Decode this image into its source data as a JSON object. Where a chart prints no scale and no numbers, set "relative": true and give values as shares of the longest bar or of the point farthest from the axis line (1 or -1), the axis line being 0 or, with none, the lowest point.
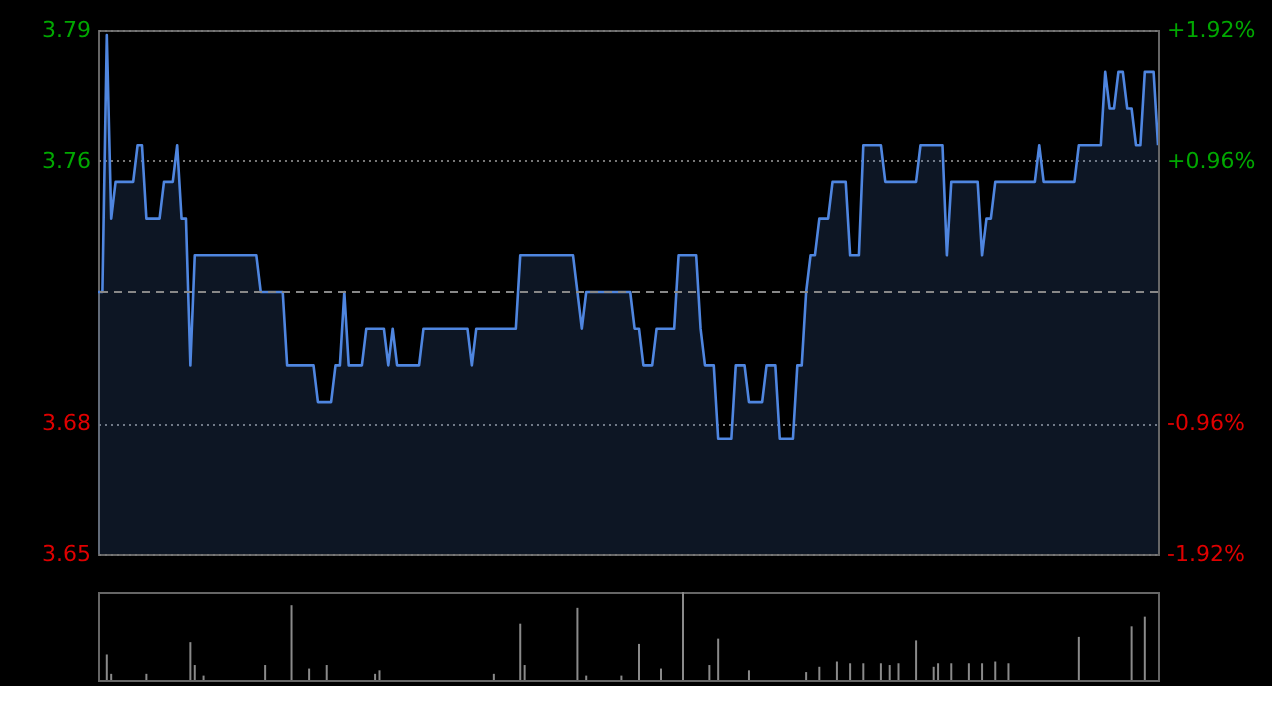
{
  "chart_data": [
    {
      "type": "line",
      "categories": [
        null,
        null,
        null,
        null,
        null,
        null,
        null,
        null,
        null,
        null,
        null,
        null,
        null,
        null,
        null,
        null,
        null,
        null,
        null,
        null,
        null,
        null,
        null,
        null,
        null,
        null,
        null,
        null,
        null,
        null,
        null,
        null,
        null,
        null,
        null,
        null,
        null,
        null,
        null,
        null,
        null,
        null,
        null,
        null,
        null,
        null,
        null,
        null,
        null,
        null,
        null,
        null,
        null,
        null,
        null,
        null,
        null,
        null,
        null,
        null,
        null,
        null,
        null,
        null,
        null,
        null,
        null,
        null,
        null,
        null,
        null,
        null,
        null,
        null,
        null,
        null,
        null,
        null,
        null,
        null,
        null,
        null,
        null,
        null,
        null,
        null,
        null,
        null,
        null,
        null,
        null,
        null,
        null,
        null,
        null,
        null,
        null,
        null,
        null,
        null,
        null,
        null,
        null,
        null,
        null,
        null,
        null,
        null,
        null,
        null,
        null,
        null,
        null,
        null,
        null,
        null,
        null,
        null,
        null,
        null,
        null,
        null,
        null,
        null,
        null,
        null,
        null,
        null,
        null,
        null,
        null,
        null,
        null,
        null,
        null,
        null,
        null,
        null,
        null,
        null,
        null,
        null,
        null,
        null,
        null,
        null,
        null,
        null,
        null,
        null,
        null,
        null,
        null,
        null,
        null,
        null,
        null,
        null,
        null,
        null,
        null,
        null,
        null,
        null,
        null,
        null,
        null,
        null,
        null,
        null,
        null,
        null,
        null,
        null,
        null,
        null,
        null,
        null,
        null,
        null,
        null,
        null,
        null,
        null,
        null,
        null,
        null,
        null,
        null,
        null,
        null,
        null,
        null,
        null,
        null,
        null,
        null,
        null,
        null,
        null,
        null,
        null,
        null,
        null,
        null,
        null,
        null,
        null,
        null,
        null,
        null,
        null,
        null,
        null,
        null,
        null,
        null,
        null,
        null,
        null,
        null,
        null,
        null,
        null,
        null,
        null,
        null,
        null,
        null,
        null,
        null,
        null,
        null,
        null,
        null,
        null,
        null,
        null,
        null,
        null,
        null,
        null
      ],
      "ylim": [
        3.6486,
        3.7914
      ],
      "yticks": [
        {
          "value": 3.6486,
          "label": "3.65"
        },
        {
          "value": 3.6843,
          "label": "3.68"
        },
        {
          "value": 3.7557,
          "label": "3.76"
        },
        {
          "value": 3.7914,
          "label": "3.79"
        }
      ],
      "y2lim": [
        -1.92,
        1.92
      ],
      "y2ticks": [
        {
          "value": -1.92,
          "label": "-1.92%"
        },
        {
          "value": -0.96,
          "label": "-0.96%"
        },
        {
          "value": 0.96,
          "label": "+0.96%"
        },
        {
          "value": 1.92,
          "label": "+1.92%"
        }
      ],
      "ref_lines": [
        {
          "axis": "y",
          "value": 3.72,
          "label": null,
          "color": "#888888",
          "line_style": "dashed"
        }
      ],
      "grid": "y",
      "marker": "none",
      "line_style": "solid",
      "tick_labels": "y",
      "series": [
        {
          "color": "#4f86e0",
          "values": [
            3.72,
            3.72,
            3.79,
            3.74,
            3.75,
            3.75,
            3.75,
            3.75,
            3.75,
            3.76,
            3.76,
            3.74,
            3.74,
            3.74,
            3.74,
            3.75,
            3.75,
            3.75,
            3.76,
            3.74,
            3.74,
            3.7,
            3.73,
            3.73,
            3.73,
            3.73,
            3.73,
            3.73,
            3.73,
            3.73,
            3.73,
            3.73,
            3.73,
            3.73,
            3.73,
            3.73,
            3.73,
            3.72,
            3.72,
            3.72,
            3.72,
            3.72,
            3.72,
            3.7,
            3.7,
            3.7,
            3.7,
            3.7,
            3.7,
            3.7,
            3.69,
            3.69,
            3.69,
            3.69,
            3.7,
            3.7,
            3.72,
            3.7,
            3.7,
            3.7,
            3.7,
            3.71,
            3.71,
            3.71,
            3.71,
            3.71,
            3.7,
            3.71,
            3.7,
            3.7,
            3.7,
            3.7,
            3.7,
            3.7,
            3.71,
            3.71,
            3.71,
            3.71,
            3.71,
            3.71,
            3.71,
            3.71,
            3.71,
            3.71,
            3.71,
            3.7,
            3.71,
            3.71,
            3.71,
            3.71,
            3.71,
            3.71,
            3.71,
            3.71,
            3.71,
            3.71,
            3.73,
            3.73,
            3.73,
            3.73,
            3.73,
            3.73,
            3.73,
            3.73,
            3.73,
            3.73,
            3.73,
            3.73,
            3.73,
            3.72,
            3.71,
            3.72,
            3.72,
            3.72,
            3.72,
            3.72,
            3.72,
            3.72,
            3.72,
            3.72,
            3.72,
            3.72,
            3.71,
            3.71,
            3.7,
            3.7,
            3.7,
            3.71,
            3.71,
            3.71,
            3.71,
            3.71,
            3.73,
            3.73,
            3.73,
            3.73,
            3.73,
            3.71,
            3.7,
            3.7,
            3.7,
            3.68,
            3.68,
            3.68,
            3.68,
            3.7,
            3.7,
            3.7,
            3.69,
            3.69,
            3.69,
            3.69,
            3.7,
            3.7,
            3.7,
            3.68,
            3.68,
            3.68,
            3.68,
            3.7,
            3.7,
            3.72,
            3.73,
            3.73,
            3.74,
            3.74,
            3.74,
            3.75,
            3.75,
            3.75,
            3.75,
            3.73,
            3.73,
            3.73,
            3.76,
            3.76,
            3.76,
            3.76,
            3.76,
            3.75,
            3.75,
            3.75,
            3.75,
            3.75,
            3.75,
            3.75,
            3.75,
            3.76,
            3.76,
            3.76,
            3.76,
            3.76,
            3.76,
            3.73,
            3.75,
            3.75,
            3.75,
            3.75,
            3.75,
            3.75,
            3.75,
            3.73,
            3.74,
            3.74,
            3.75,
            3.75,
            3.75,
            3.75,
            3.75,
            3.75,
            3.75,
            3.75,
            3.75,
            3.75,
            3.76,
            3.75,
            3.75,
            3.75,
            3.75,
            3.75,
            3.75,
            3.75,
            3.75,
            3.76,
            3.76,
            3.76,
            3.76,
            3.76,
            3.76,
            3.78,
            3.77,
            3.77,
            3.78,
            3.78,
            3.77,
            3.77,
            3.76,
            3.76,
            3.78,
            3.78,
            3.78,
            3.76
          ]
        }
      ]
    },
    {
      "type": "bar",
      "relative": true,
      "tick_labels": false,
      "color": "#8a8a8a",
      "categories": [
        null,
        null,
        null,
        null,
        null,
        null,
        null,
        null,
        null,
        null,
        null,
        null,
        null,
        null,
        null,
        null,
        null,
        null,
        null,
        null,
        null,
        null,
        null,
        null,
        null,
        null,
        null,
        null,
        null,
        null,
        null,
        null,
        null,
        null,
        null,
        null,
        null,
        null,
        null,
        null,
        null,
        null,
        null,
        null,
        null,
        null,
        null,
        null,
        null,
        null,
        null,
        null,
        null,
        null,
        null,
        null,
        null,
        null,
        null,
        null,
        null,
        null,
        null,
        null,
        null,
        null,
        null,
        null,
        null,
        null,
        null,
        null,
        null,
        null,
        null,
        null,
        null,
        null,
        null,
        null,
        null,
        null,
        null,
        null,
        null,
        null,
        null,
        null,
        null,
        null,
        null,
        null,
        null,
        null,
        null,
        null,
        null,
        null,
        null,
        null,
        null,
        null,
        null,
        null,
        null,
        null,
        null,
        null,
        null,
        null,
        null,
        null,
        null,
        null,
        null,
        null,
        null,
        null,
        null,
        null,
        null,
        null,
        null,
        null,
        null,
        null,
        null,
        null,
        null,
        null,
        null,
        null,
        null,
        null,
        null,
        null,
        null,
        null,
        null,
        null,
        null,
        null,
        null,
        null,
        null,
        null,
        null,
        null,
        null,
        null,
        null,
        null,
        null,
        null,
        null,
        null,
        null,
        null,
        null,
        null,
        null,
        null,
        null,
        null,
        null,
        null,
        null,
        null,
        null,
        null,
        null,
        null,
        null,
        null,
        null,
        null,
        null,
        null,
        null,
        null,
        null,
        null,
        null,
        null,
        null,
        null,
        null,
        null,
        null,
        null,
        null,
        null,
        null,
        null,
        null,
        null,
        null,
        null,
        null,
        null,
        null,
        null,
        null,
        null,
        null,
        null,
        null,
        null,
        null,
        null,
        null,
        null,
        null,
        null,
        null,
        null,
        null,
        null,
        null,
        null,
        null,
        null,
        null,
        null,
        null,
        null,
        null,
        null,
        null,
        null,
        null,
        null,
        null,
        null,
        null,
        null,
        null,
        null,
        null,
        null,
        null,
        null
      ],
      "values": [
        null,
        null,
        0.29,
        0.07,
        null,
        null,
        null,
        null,
        null,
        null,
        null,
        0.07,
        null,
        null,
        null,
        null,
        null,
        null,
        null,
        null,
        null,
        0.43,
        0.17,
        null,
        0.05,
        null,
        null,
        null,
        null,
        null,
        null,
        null,
        null,
        null,
        null,
        null,
        null,
        null,
        0.17,
        null,
        null,
        null,
        null,
        null,
        0.85,
        null,
        null,
        null,
        0.13,
        null,
        null,
        null,
        0.17,
        null,
        null,
        null,
        null,
        null,
        null,
        null,
        null,
        null,
        null,
        0.07,
        0.11,
        null,
        null,
        null,
        null,
        null,
        null,
        null,
        null,
        null,
        null,
        null,
        null,
        null,
        null,
        null,
        null,
        null,
        null,
        null,
        null,
        null,
        null,
        null,
        null,
        null,
        0.07,
        null,
        null,
        null,
        null,
        null,
        0.64,
        0.17,
        null,
        null,
        null,
        null,
        null,
        null,
        null,
        null,
        null,
        null,
        null,
        0.82,
        null,
        0.05,
        null,
        null,
        null,
        null,
        null,
        null,
        null,
        0.05,
        null,
        null,
        null,
        0.41,
        null,
        null,
        null,
        null,
        0.13,
        null,
        null,
        null,
        null,
        1.0,
        null,
        null,
        null,
        null,
        null,
        0.17,
        null,
        0.47,
        null,
        null,
        null,
        null,
        null,
        null,
        0.11,
        null,
        null,
        null,
        null,
        null,
        null,
        null,
        null,
        null,
        null,
        null,
        null,
        0.09,
        null,
        null,
        0.15,
        null,
        null,
        null,
        0.21,
        null,
        null,
        0.19,
        null,
        null,
        0.19,
        null,
        null,
        null,
        0.19,
        null,
        0.17,
        null,
        0.19,
        null,
        null,
        null,
        0.45,
        null,
        null,
        null,
        0.15,
        0.19,
        null,
        null,
        0.19,
        null,
        null,
        null,
        0.19,
        null,
        null,
        0.19,
        null,
        null,
        0.21,
        null,
        null,
        0.19,
        null,
        null,
        null,
        null,
        null,
        null,
        null,
        null,
        null,
        null,
        null,
        null,
        null,
        null,
        null,
        0.49,
        null,
        null,
        null,
        null,
        null,
        null,
        null,
        null,
        null,
        null,
        null,
        0.61,
        null,
        null,
        0.72,
        null,
        null,
        null
      ]
    }
  ]
}
